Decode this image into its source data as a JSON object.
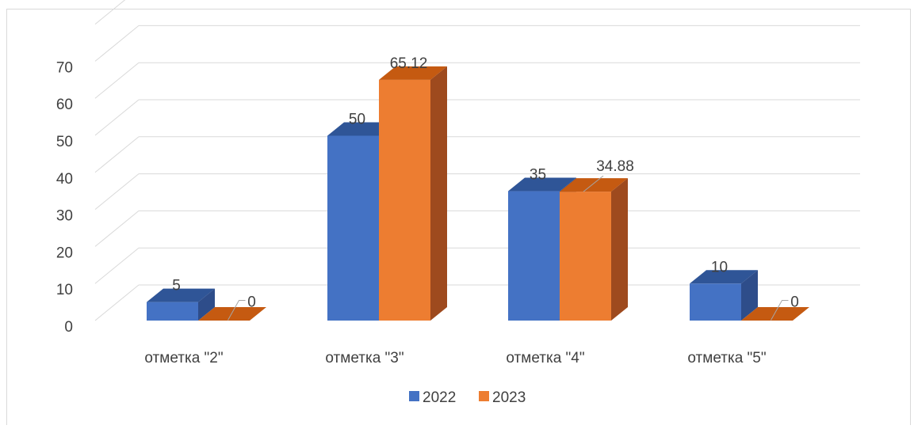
{
  "chart_data": {
    "type": "bar",
    "style": "3d-clustered-column",
    "categories": [
      "отметка \"2\"",
      "отметка \"3\"",
      "отметка \"4\"",
      "отметка \"5\""
    ],
    "series": [
      {
        "name": "2022",
        "values": [
          5,
          50,
          35,
          10
        ],
        "labels": [
          "5",
          "50",
          "35",
          "10"
        ]
      },
      {
        "name": "2023",
        "values": [
          0,
          65.12,
          34.88,
          0
        ],
        "labels": [
          "0",
          "65.12",
          "34.88",
          "0"
        ]
      }
    ],
    "yticks": [
      "0",
      "10",
      "20",
      "30",
      "40",
      "50",
      "60",
      "70"
    ],
    "ylim": [
      0,
      80
    ],
    "grid": true,
    "legend": "bottom",
    "colors": {
      "2022": {
        "front": "#4472C4",
        "top": "#2F5597",
        "side": "#2E4D8A"
      },
      "2023": {
        "front": "#ED7D31",
        "top": "#C55A11",
        "side": "#9E4A1E"
      },
      "grid": "#D9D9D9",
      "text": "#404040"
    }
  }
}
